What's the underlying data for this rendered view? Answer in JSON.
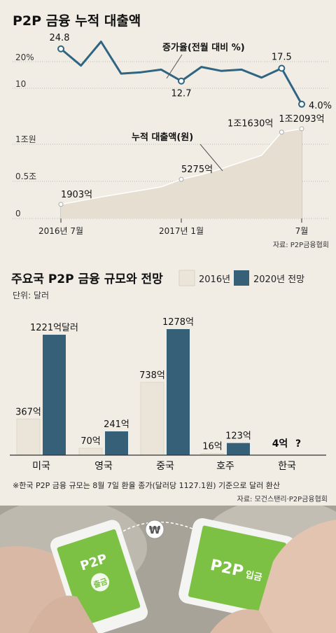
{
  "chart_data": [
    {
      "type": "line",
      "title": "P2P 금융 누적 대출액",
      "series_growth": {
        "name": "증가율(전월 대비 %)",
        "values": [
          24.8,
          18.5,
          27.5,
          15.5,
          16.0,
          17.0,
          12.7,
          18.0,
          16.5,
          17.0,
          14.0,
          17.5,
          4.0
        ],
        "labels": [
          "24.8",
          "",
          "",
          "",
          "",
          "",
          "12.7",
          "",
          "",
          "",
          "",
          "17.5",
          "4.0%"
        ],
        "yticks": [
          "20%",
          "10"
        ]
      },
      "series_loan": {
        "name": "누적 대출액(원)",
        "values_eok": [
          1903,
          2400,
          2900,
          3350,
          3800,
          4250,
          5275,
          5900,
          6700,
          7600,
          8500,
          11630,
          12093
        ],
        "labels": [
          "1903억",
          "",
          "",
          "",
          "",
          "",
          "5275억",
          "",
          "",
          "",
          "",
          "1조1630억",
          "1조2093억"
        ],
        "yticks": [
          "1조원",
          "0.5조",
          "0"
        ]
      },
      "xticks": [
        "2016년 7월",
        "2017년 1월",
        "7월"
      ],
      "source": "자료: P2P금융협회"
    },
    {
      "type": "bar",
      "title": "주요국 P2P 금융 규모와 전망",
      "unit": "단위: 달러",
      "categories": [
        "미국",
        "영국",
        "중국",
        "호주",
        "한국"
      ],
      "series": [
        {
          "name": "2016년",
          "values": [
            367,
            70,
            738,
            16,
            4
          ],
          "labels": [
            "367억",
            "70억",
            "738억",
            "16억",
            "4억"
          ],
          "color": "#ebe5d9"
        },
        {
          "name": "2020년 전망",
          "values": [
            1221,
            241,
            1278,
            123,
            null
          ],
          "labels": [
            "1221억달러",
            "241억",
            "1278억",
            "123억",
            "?"
          ],
          "color": "#365f78"
        }
      ],
      "note": "※한국 P2P 금융 규모는 8월 7일 환율 종가(달러당 1127.1원) 기준으로 달러 환산",
      "source": "자료: 모건스탠리·P2P금융협회"
    }
  ],
  "photo": {
    "phone_left_text": [
      "P2P",
      "출금"
    ],
    "phone_right_text": [
      "P2P",
      "입금"
    ],
    "coin": "₩"
  }
}
